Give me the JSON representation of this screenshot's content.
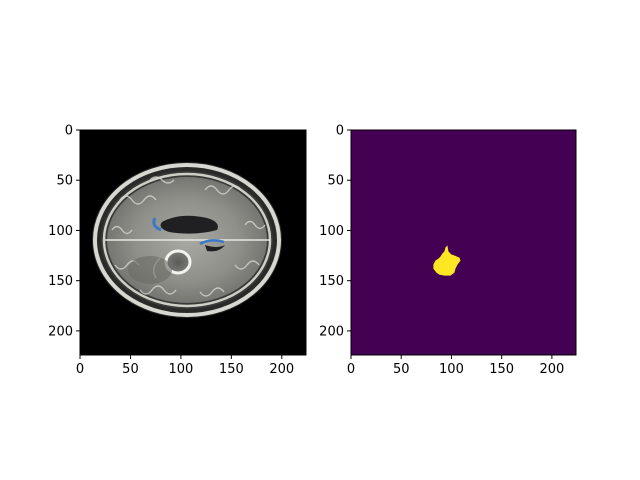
{
  "figure": {
    "panels": [
      {
        "name": "mri-panel",
        "content": "brain MRI axial slice",
        "xlim": [
          0,
          224
        ],
        "ylim": [
          224,
          0
        ],
        "x_ticks": [
          0,
          50,
          100,
          150,
          200
        ],
        "y_ticks": [
          0,
          50,
          100,
          150,
          200
        ],
        "background": "#000000"
      },
      {
        "name": "mask-panel",
        "content": "segmentation mask",
        "xlim": [
          0,
          224
        ],
        "ylim": [
          224,
          0
        ],
        "x_ticks": [
          0,
          50,
          100,
          150,
          200
        ],
        "y_ticks": [
          0,
          50,
          100,
          150,
          200
        ],
        "background": "#440154",
        "mask_color": "#fde725",
        "mask_outline": [
          [
            94,
            117
          ],
          [
            96,
            115
          ],
          [
            97,
            121
          ],
          [
            100,
            124
          ],
          [
            103,
            125
          ],
          [
            108,
            127
          ],
          [
            109,
            130
          ],
          [
            106,
            134
          ],
          [
            104,
            138
          ],
          [
            103,
            142
          ],
          [
            99,
            145
          ],
          [
            93,
            145
          ],
          [
            88,
            144
          ],
          [
            85,
            142
          ],
          [
            82,
            138
          ],
          [
            82,
            134
          ],
          [
            84,
            130
          ],
          [
            87,
            128
          ],
          [
            89,
            126
          ],
          [
            91,
            123
          ],
          [
            93,
            121
          ]
        ]
      }
    ]
  }
}
